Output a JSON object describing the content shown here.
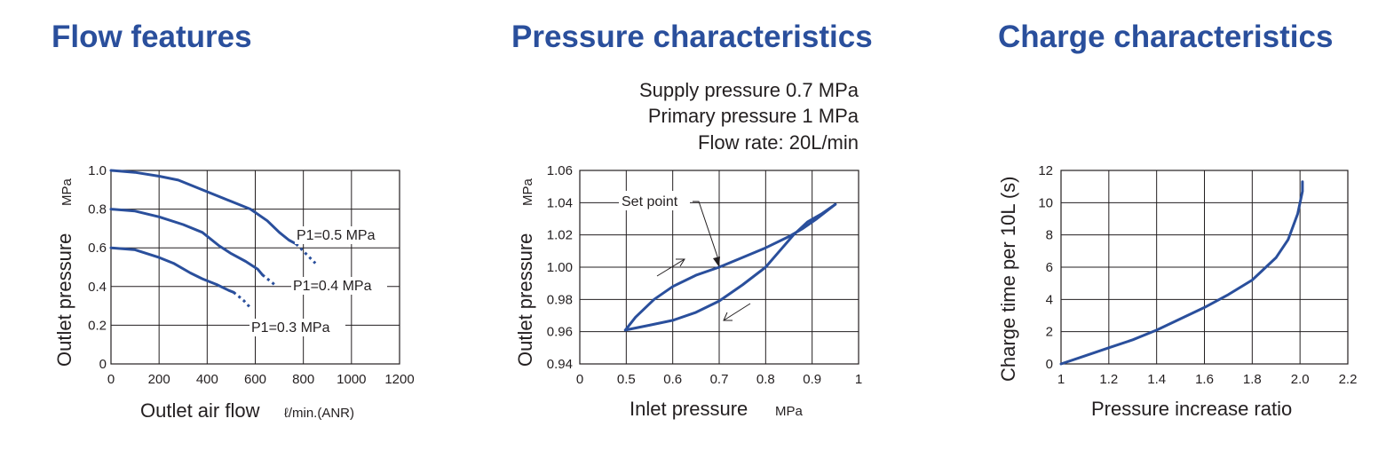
{
  "titles": {
    "flow": "Flow features",
    "pressure": "Pressure characteristics",
    "charge": "Charge characteristics"
  },
  "pressure_notes": [
    "Supply pressure 0.7 MPa",
    "Primary pressure 1 MPa",
    "Flow rate: 20L/min"
  ],
  "colors": {
    "title": "#2a4f9c",
    "curve": "#2a4f9c",
    "grid": "#231f20",
    "text": "#231f20"
  },
  "chart_data": [
    {
      "type": "line",
      "title": "Flow features",
      "xlabel": "Outlet air flow",
      "xlabel_unit": "ℓ/min.(ANR)",
      "ylabel": "Outlet pressure",
      "ylabel_unit": "MPa",
      "xlim": [
        0,
        1200
      ],
      "ylim": [
        0,
        1.0
      ],
      "xticks": [
        "0",
        "200",
        "400",
        "600",
        "800",
        "1000",
        "1200"
      ],
      "yticks": [
        "0",
        "0.2",
        "0.4",
        "0.6",
        "0.8",
        "1.0"
      ],
      "grid": true,
      "series": [
        {
          "name": "P1=0.5 MPa",
          "solid": [
            [
              0,
              1.0
            ],
            [
              100,
              0.99
            ],
            [
              200,
              0.97
            ],
            [
              280,
              0.95
            ],
            [
              400,
              0.89
            ],
            [
              500,
              0.84
            ],
            [
              580,
              0.8
            ],
            [
              650,
              0.74
            ],
            [
              700,
              0.68
            ],
            [
              740,
              0.64
            ],
            [
              770,
              0.62
            ]
          ],
          "dotted": [
            [
              770,
              0.62
            ],
            [
              810,
              0.57
            ],
            [
              850,
              0.52
            ]
          ]
        },
        {
          "name": "P1=0.4 MPa",
          "solid": [
            [
              0,
              0.8
            ],
            [
              100,
              0.79
            ],
            [
              200,
              0.76
            ],
            [
              300,
              0.72
            ],
            [
              380,
              0.68
            ],
            [
              450,
              0.61
            ],
            [
              500,
              0.57
            ],
            [
              560,
              0.53
            ],
            [
              610,
              0.49
            ],
            [
              630,
              0.46
            ]
          ],
          "dotted": [
            [
              630,
              0.46
            ],
            [
              660,
              0.43
            ],
            [
              690,
              0.4
            ]
          ]
        },
        {
          "name": "P1=0.3 MPa",
          "solid": [
            [
              0,
              0.6
            ],
            [
              100,
              0.59
            ],
            [
              200,
              0.55
            ],
            [
              260,
              0.52
            ],
            [
              330,
              0.47
            ],
            [
              380,
              0.44
            ],
            [
              440,
              0.41
            ],
            [
              490,
              0.38
            ],
            [
              510,
              0.37
            ]
          ],
          "dotted": [
            [
              510,
              0.37
            ],
            [
              550,
              0.33
            ],
            [
              580,
              0.29
            ]
          ]
        }
      ]
    },
    {
      "type": "line",
      "title": "Pressure characteristics",
      "xlabel": "Inlet pressure",
      "xlabel_unit": "MPa",
      "ylabel": "Outlet pressure",
      "ylabel_unit": "MPa",
      "xlim": [
        0,
        1
      ],
      "ylim": [
        0.94,
        1.06
      ],
      "xticks": [
        "0",
        "0.5",
        "0.6",
        "0.7",
        "0.8",
        "0.9",
        "1"
      ],
      "yticks": [
        "0.94",
        "0.96",
        "0.98",
        "1.00",
        "1.02",
        "1.04",
        "1.06"
      ],
      "grid": true,
      "annotation": "Set point",
      "set_point": [
        0.7,
        1.0
      ],
      "series": [
        {
          "name": "",
          "values": [
            [
              0.49,
              0.961
            ],
            [
              0.52,
              0.969
            ],
            [
              0.56,
              0.98
            ],
            [
              0.6,
              0.988
            ],
            [
              0.65,
              0.995
            ],
            [
              0.7,
              1.0
            ],
            [
              0.75,
              1.006
            ],
            [
              0.8,
              1.012
            ],
            [
              0.85,
              1.019
            ],
            [
              0.88,
              1.024
            ],
            [
              0.91,
              1.03
            ],
            [
              0.95,
              1.039
            ]
          ]
        },
        {
          "name": "",
          "values": [
            [
              0.49,
              0.961
            ],
            [
              0.55,
              0.964
            ],
            [
              0.6,
              0.967
            ],
            [
              0.65,
              0.972
            ],
            [
              0.7,
              0.979
            ],
            [
              0.75,
              0.989
            ],
            [
              0.8,
              1.0
            ],
            [
              0.83,
              1.01
            ],
            [
              0.86,
              1.02
            ],
            [
              0.89,
              1.028
            ],
            [
              0.92,
              1.033
            ],
            [
              0.95,
              1.039
            ]
          ]
        }
      ]
    },
    {
      "type": "line",
      "title": "Charge characteristics",
      "xlabel": "Pressure increase ratio",
      "ylabel": "Charge time per 10L (s)",
      "xlim": [
        1,
        2.2
      ],
      "ylim": [
        0,
        12
      ],
      "xticks": [
        "1",
        "1.2",
        "1.4",
        "1.6",
        "1.8",
        "2.0",
        "2.2"
      ],
      "yticks": [
        "0",
        "2",
        "4",
        "6",
        "8",
        "10",
        "12"
      ],
      "grid": true,
      "series": [
        {
          "name": "",
          "values": [
            [
              1.0,
              0
            ],
            [
              1.1,
              0.5
            ],
            [
              1.2,
              1.0
            ],
            [
              1.3,
              1.5
            ],
            [
              1.4,
              2.1
            ],
            [
              1.5,
              2.8
            ],
            [
              1.6,
              3.5
            ],
            [
              1.7,
              4.3
            ],
            [
              1.8,
              5.2
            ],
            [
              1.9,
              6.6
            ],
            [
              1.95,
              7.7
            ],
            [
              1.99,
              9.3
            ],
            [
              2.01,
              10.7
            ],
            [
              2.01,
              11.3
            ]
          ]
        }
      ]
    }
  ]
}
